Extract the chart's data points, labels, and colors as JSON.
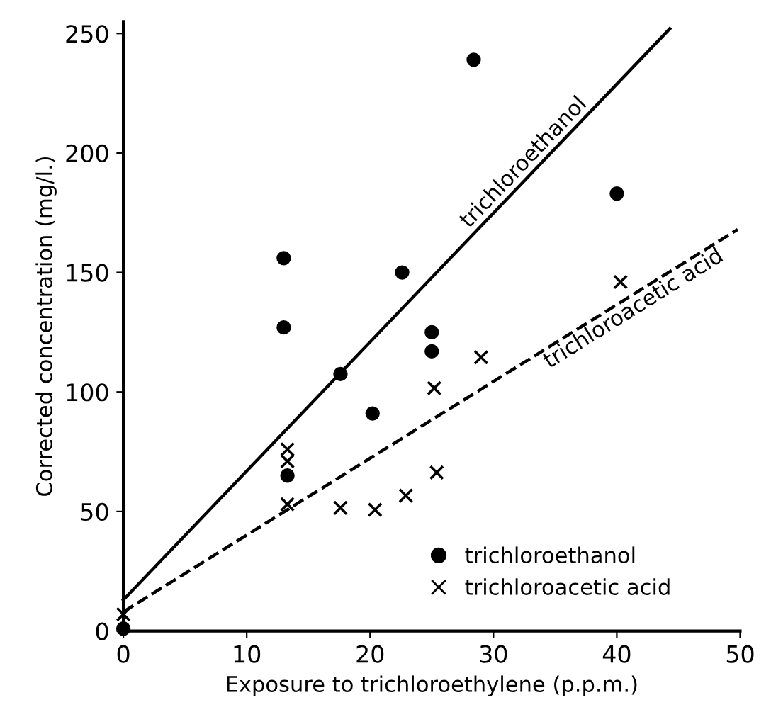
{
  "chart_data": {
    "type": "scatter",
    "xlabel": "Exposure to trichloroethylene (p.p.m.)",
    "ylabel": "Corrected concentration (mg/l.)",
    "xlim": [
      0,
      50
    ],
    "ylim": [
      0,
      255
    ],
    "xticks": [
      0,
      10,
      20,
      30,
      40,
      50
    ],
    "yticks": [
      0,
      50,
      100,
      150,
      200,
      250
    ],
    "grid": false,
    "legend": "bottom right",
    "series": [
      {
        "name": "trichloroethanol",
        "color": "#000000",
        "marker": "circle",
        "x": [
          0,
          13,
          13,
          13.3,
          17.6,
          20.2,
          22.6,
          25,
          25,
          28.4,
          40
        ],
        "values": [
          1,
          156,
          127,
          65,
          107.5,
          91,
          150,
          125,
          117,
          239,
          183
        ]
      },
      {
        "name": "trichloroacetic acid",
        "color": "#000000",
        "marker": "cross",
        "x": [
          0,
          13.3,
          13.3,
          13.3,
          17.6,
          20.4,
          22.9,
          25.4,
          25.2,
          29,
          40.3
        ],
        "values": [
          7,
          76,
          71,
          53,
          51.5,
          50.7,
          56.6,
          66.3,
          101.6,
          114.5,
          146
        ]
      },
      {
        "type": "line",
        "color": "#000000",
        "line_style": "solid",
        "x": [
          0,
          44.3
        ],
        "values": [
          13,
          252
        ]
      },
      {
        "type": "line",
        "color": "#000000",
        "line_style": "dashed",
        "x": [
          0,
          49.8
        ],
        "values": [
          8,
          168
        ]
      }
    ],
    "annotations": [
      "trichloroethanol",
      "trichloroacetic acid"
    ]
  }
}
